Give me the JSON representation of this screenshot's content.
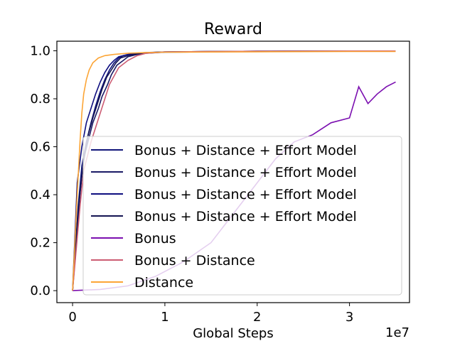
{
  "chart_data": {
    "type": "line",
    "title": "Reward",
    "xlabel": "Global Steps",
    "ylabel": "",
    "x_scale_note": "1e7",
    "xlim": [
      -0.17,
      3.65
    ],
    "ylim": [
      -0.05,
      1.04
    ],
    "xticks": [
      0,
      1,
      2,
      3
    ],
    "xtick_labels": [
      "0",
      "1",
      "2",
      "3"
    ],
    "yticks": [
      0.0,
      0.2,
      0.4,
      0.6,
      0.8,
      1.0
    ],
    "ytick_labels": [
      "0.0",
      "0.2",
      "0.4",
      "0.6",
      "0.8",
      "1.0"
    ],
    "grid": false,
    "legend_position": "center-right",
    "series": [
      {
        "name": "Bonus + Distance + Effort Model",
        "color": "#11157a",
        "x": [
          0,
          0.06,
          0.1,
          0.15,
          0.2,
          0.25,
          0.3,
          0.35,
          0.4,
          0.45,
          0.5,
          0.55,
          0.6,
          0.7,
          0.8,
          1.0,
          1.5,
          2.0,
          3.0,
          3.5
        ],
        "y": [
          0.0,
          0.35,
          0.52,
          0.62,
          0.7,
          0.77,
          0.83,
          0.88,
          0.92,
          0.95,
          0.97,
          0.98,
          0.985,
          0.99,
          0.992,
          0.995,
          0.997,
          0.998,
          0.999,
          0.999
        ]
      },
      {
        "name": "Bonus + Distance + Effort Model",
        "color": "#1a1a66",
        "x": [
          0,
          0.08,
          0.12,
          0.18,
          0.22,
          0.28,
          0.32,
          0.38,
          0.42,
          0.48,
          0.55,
          0.6,
          0.7,
          0.8,
          1.0,
          1.5,
          2.0,
          3.0,
          3.5
        ],
        "y": [
          0.0,
          0.4,
          0.55,
          0.64,
          0.7,
          0.76,
          0.81,
          0.86,
          0.9,
          0.94,
          0.96,
          0.975,
          0.985,
          0.99,
          0.994,
          0.996,
          0.998,
          0.999,
          0.999
        ]
      },
      {
        "name": "Bonus + Distance + Effort Model",
        "color": "#0e0e80",
        "x": [
          0,
          0.05,
          0.1,
          0.15,
          0.2,
          0.25,
          0.3,
          0.35,
          0.4,
          0.45,
          0.5,
          0.6,
          0.7,
          0.8,
          1.0,
          1.5,
          2.0,
          3.0,
          3.5
        ],
        "y": [
          0.0,
          0.45,
          0.6,
          0.7,
          0.76,
          0.82,
          0.87,
          0.91,
          0.94,
          0.96,
          0.975,
          0.985,
          0.99,
          0.993,
          0.995,
          0.997,
          0.998,
          0.999,
          0.999
        ]
      },
      {
        "name": "Bonus + Distance + Effort Model",
        "color": "#141452",
        "x": [
          0,
          0.07,
          0.12,
          0.17,
          0.22,
          0.27,
          0.32,
          0.37,
          0.42,
          0.47,
          0.52,
          0.6,
          0.7,
          0.8,
          1.0,
          1.5,
          2.0,
          3.0,
          3.5
        ],
        "y": [
          0.0,
          0.38,
          0.54,
          0.65,
          0.72,
          0.78,
          0.84,
          0.89,
          0.92,
          0.95,
          0.97,
          0.98,
          0.988,
          0.992,
          0.995,
          0.997,
          0.998,
          0.999,
          0.999
        ]
      },
      {
        "name": "Bonus",
        "color": "#7b0fb0",
        "x": [
          0,
          0.3,
          0.6,
          0.9,
          1.2,
          1.5,
          1.8,
          2.0,
          2.2,
          2.4,
          2.6,
          2.8,
          3.0,
          3.1,
          3.2,
          3.3,
          3.4,
          3.5
        ],
        "y": [
          0.0,
          0.005,
          0.02,
          0.06,
          0.12,
          0.2,
          0.35,
          0.45,
          0.55,
          0.62,
          0.65,
          0.7,
          0.72,
          0.85,
          0.78,
          0.82,
          0.85,
          0.87
        ]
      },
      {
        "name": "Bonus + Distance",
        "color": "#cc5c73",
        "x": [
          0,
          0.08,
          0.12,
          0.2,
          0.25,
          0.3,
          0.35,
          0.4,
          0.5,
          0.6,
          0.7,
          0.8,
          1.0,
          1.5,
          2.0,
          3.0,
          3.5
        ],
        "y": [
          0.0,
          0.35,
          0.5,
          0.62,
          0.68,
          0.74,
          0.8,
          0.86,
          0.93,
          0.96,
          0.98,
          0.99,
          0.995,
          0.997,
          0.998,
          0.999,
          0.999
        ]
      },
      {
        "name": "Distance",
        "color": "#fca536",
        "x": [
          0,
          0.05,
          0.08,
          0.1,
          0.12,
          0.15,
          0.18,
          0.22,
          0.28,
          0.35,
          0.45,
          0.6,
          0.8,
          1.0,
          1.5,
          2.0,
          3.0,
          3.5
        ],
        "y": [
          0.0,
          0.4,
          0.62,
          0.74,
          0.82,
          0.88,
          0.92,
          0.95,
          0.97,
          0.98,
          0.985,
          0.99,
          0.993,
          0.994,
          0.995,
          0.996,
          0.997,
          0.997
        ]
      }
    ]
  }
}
